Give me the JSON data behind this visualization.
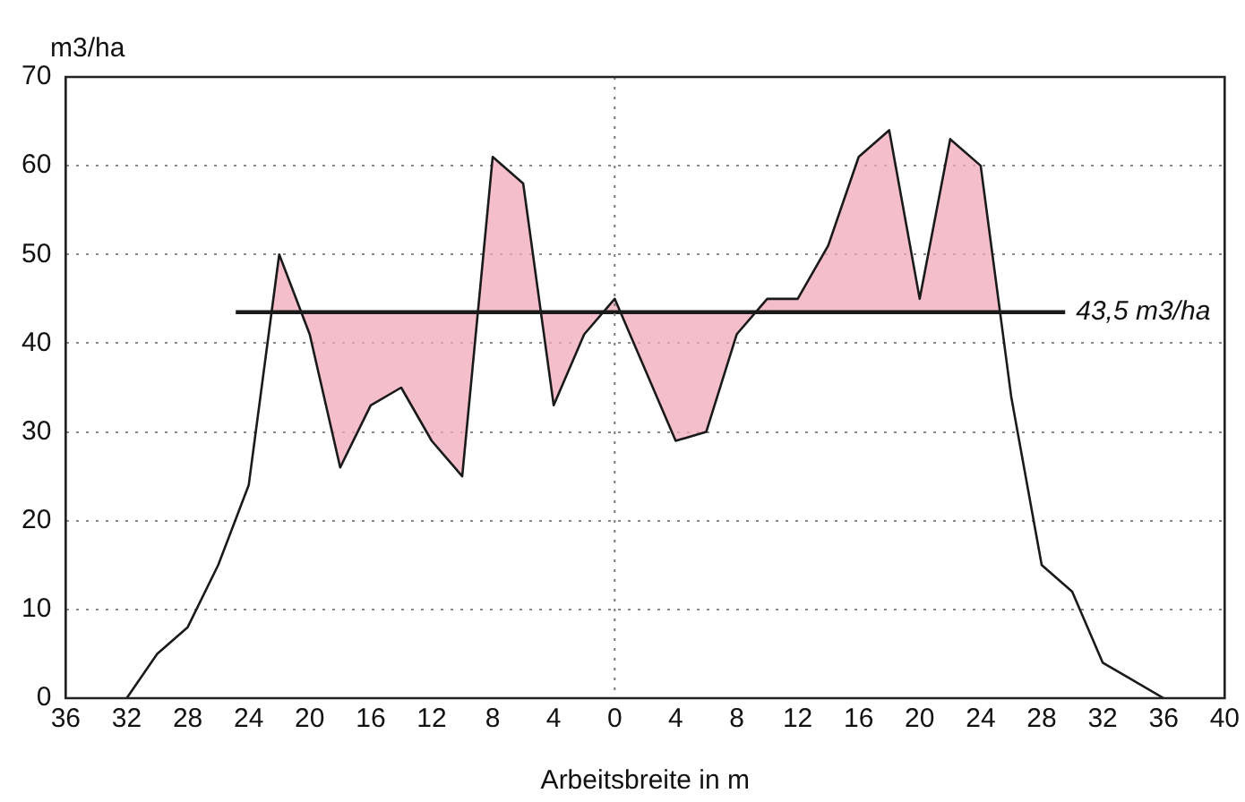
{
  "chart_data": {
    "type": "line",
    "xlabel": "Arbeitsbreite in m",
    "ylabel": "m3/ha",
    "x": [
      -32,
      -30,
      -28,
      -26,
      -24,
      -22,
      -20,
      -18,
      -16,
      -14,
      -12,
      -10,
      -8,
      -6,
      -4,
      -2,
      0,
      4,
      6,
      8,
      10,
      12,
      14,
      16,
      18,
      20,
      22,
      24,
      26,
      28,
      30,
      32,
      34,
      36
    ],
    "series": [
      {
        "color": "#1a1a1a",
        "values": [
          0,
          5,
          8,
          15,
          24,
          50,
          41,
          26,
          33,
          35,
          29,
          25,
          61,
          58,
          33,
          41,
          45,
          29,
          30,
          41,
          45,
          45,
          51,
          61,
          64,
          45,
          63,
          60,
          34,
          15,
          12,
          4,
          2,
          0
        ]
      }
    ],
    "xlim": [
      -36,
      40
    ],
    "xticks": [
      {
        "value": -36,
        "label": "36"
      },
      {
        "value": -32,
        "label": "32"
      },
      {
        "value": -28,
        "label": "28"
      },
      {
        "value": -24,
        "label": "24"
      },
      {
        "value": -20,
        "label": "20"
      },
      {
        "value": -16,
        "label": "16"
      },
      {
        "value": -12,
        "label": "12"
      },
      {
        "value": -8,
        "label": "8"
      },
      {
        "value": -4,
        "label": "4"
      },
      0,
      4,
      8,
      12,
      16,
      20,
      24,
      28,
      32,
      36,
      40
    ],
    "ylim": [
      0,
      70
    ],
    "yticks": [
      0,
      10,
      20,
      30,
      40,
      50,
      60,
      70
    ],
    "ref_lines": [
      {
        "axis": "y",
        "value": 43.5,
        "label": "43,5 m3/ha",
        "color": "#1a1a1a"
      },
      {
        "axis": "x",
        "value": 0,
        "color": "#777777",
        "line_style": "dotted"
      }
    ],
    "grid": "y",
    "legend": false,
    "marker": "none",
    "line_style": "solid"
  }
}
